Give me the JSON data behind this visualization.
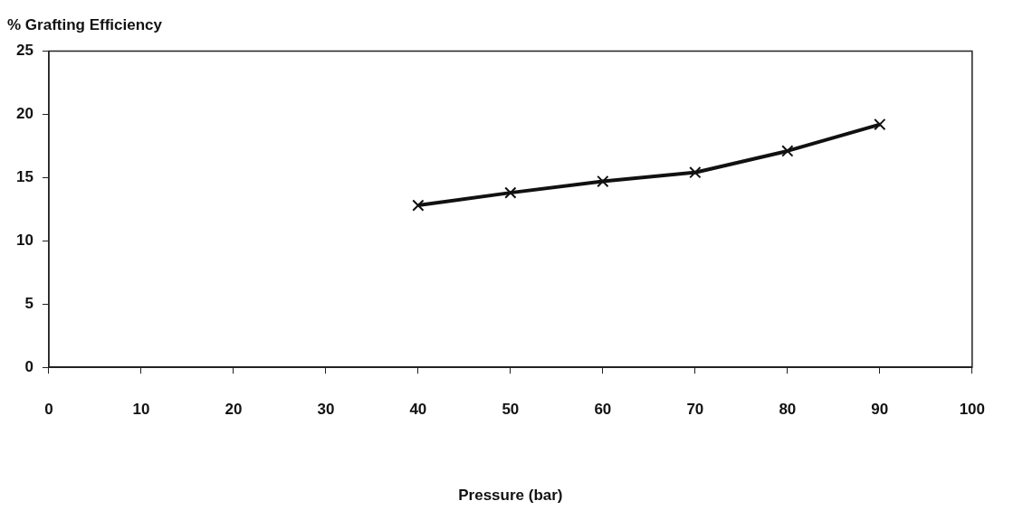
{
  "chart_data": {
    "type": "line",
    "ylabel": "% Grafting Efficiency",
    "xlabel": "Pressure (bar)",
    "x": [
      40,
      50,
      60,
      70,
      80,
      90
    ],
    "series": [
      {
        "color": "#111111",
        "values": [
          12.8,
          13.8,
          14.7,
          15.4,
          17.1,
          19.2
        ]
      }
    ],
    "xlim": [
      0,
      100
    ],
    "xticks": [
      0,
      10,
      20,
      30,
      40,
      50,
      60,
      70,
      80,
      90,
      100
    ],
    "ylim": [
      0,
      25
    ],
    "yticks": [
      0,
      5,
      10,
      15,
      20,
      25
    ],
    "grid": false,
    "legend": false,
    "marker": "cross",
    "line_style": "solid"
  }
}
